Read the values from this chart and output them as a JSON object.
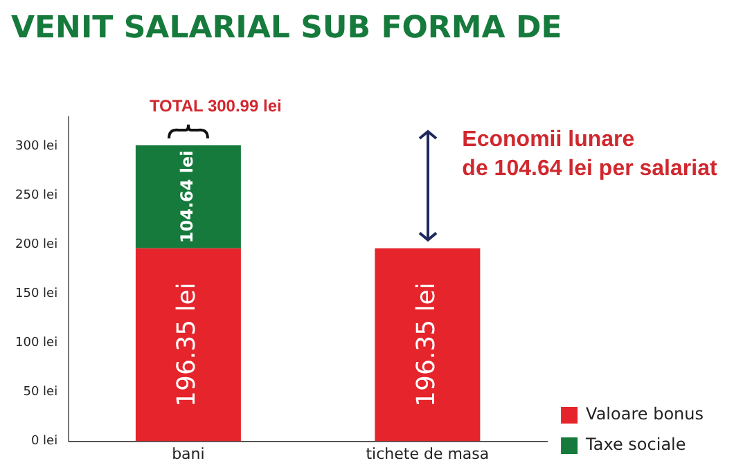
{
  "chart_data": {
    "type": "bar",
    "title": "VENIT SALARIAL SUB FORMA DE",
    "categories": [
      "bani",
      "tichete de masa"
    ],
    "stacked": true,
    "series": [
      {
        "name": "Valoare bonus",
        "color": "#e5242b",
        "values": [
          196.35,
          196.35
        ],
        "value_labels": [
          "196.35 lei",
          "196.35 lei"
        ]
      },
      {
        "name": "Taxe sociale",
        "color": "#157a3c",
        "values": [
          104.64,
          null
        ],
        "value_labels": [
          "104.64 lei",
          null
        ]
      }
    ],
    "totals": [
      "TOTAL 300.99 lei",
      null
    ],
    "annotations": [
      "Economii lunare de 104.64 lei per salariat"
    ],
    "ylim": [
      0,
      330
    ],
    "yticks": [
      {
        "value": 0,
        "label": "0 lei"
      },
      {
        "value": 50,
        "label": "50 lei"
      },
      {
        "value": 100,
        "label": "100 lei"
      },
      {
        "value": 150,
        "label": "150 lei"
      },
      {
        "value": 200,
        "label": "200 lei"
      },
      {
        "value": 250,
        "label": "250 lei"
      },
      {
        "value": 300,
        "label": "300 lei"
      }
    ],
    "grid": false,
    "legend": "bottom right"
  }
}
